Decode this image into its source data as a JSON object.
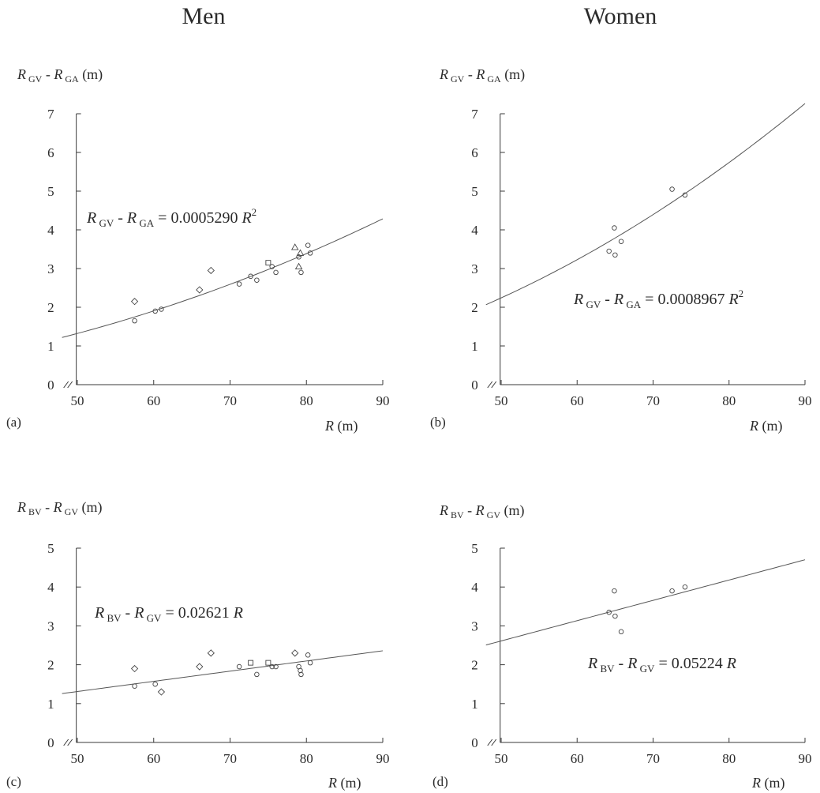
{
  "column_titles": {
    "men": "Men",
    "women": "Women"
  },
  "chart_data": [
    {
      "type": "scatter",
      "panel_label": "(a)",
      "column": "Men",
      "ylabel_parts": {
        "sym": "R",
        "sub1": "GV",
        "mid": " - ",
        "sub2": "GA",
        "unit": " (m)"
      },
      "xlabel_parts": {
        "sym": "R",
        "unit": " (m)"
      },
      "xlim": [
        48,
        90
      ],
      "ylim": [
        0,
        7
      ],
      "xticks": [
        50,
        60,
        70,
        80,
        90
      ],
      "yticks": [
        0,
        1,
        2,
        3,
        4,
        5,
        6,
        7
      ],
      "equation": {
        "lhs": "R",
        "sub1": "GV",
        "mid": " - ",
        "sub2": "GA",
        "rhs": " = 0.0005290  ",
        "var": "R",
        "exp": "2"
      },
      "fit": {
        "form": "a*R^2",
        "coef": 0.000529,
        "range": [
          48,
          90
        ]
      },
      "points": [
        {
          "x": 57.5,
          "y": 2.15,
          "m": "diamond"
        },
        {
          "x": 57.5,
          "y": 1.65,
          "m": "circle"
        },
        {
          "x": 60.2,
          "y": 1.9,
          "m": "circle"
        },
        {
          "x": 61.0,
          "y": 1.95,
          "m": "circle"
        },
        {
          "x": 66.0,
          "y": 2.45,
          "m": "diamond"
        },
        {
          "x": 67.5,
          "y": 2.95,
          "m": "diamond"
        },
        {
          "x": 71.2,
          "y": 2.6,
          "m": "circle"
        },
        {
          "x": 72.7,
          "y": 2.8,
          "m": "circle"
        },
        {
          "x": 73.5,
          "y": 2.7,
          "m": "circle"
        },
        {
          "x": 75.0,
          "y": 3.15,
          "m": "square"
        },
        {
          "x": 75.5,
          "y": 3.05,
          "m": "circle"
        },
        {
          "x": 76.0,
          "y": 2.9,
          "m": "circle"
        },
        {
          "x": 78.5,
          "y": 3.55,
          "m": "triangle"
        },
        {
          "x": 79.0,
          "y": 3.3,
          "m": "circle"
        },
        {
          "x": 79.0,
          "y": 3.05,
          "m": "triangle"
        },
        {
          "x": 79.2,
          "y": 3.4,
          "m": "triangle"
        },
        {
          "x": 79.3,
          "y": 2.9,
          "m": "circle"
        },
        {
          "x": 80.2,
          "y": 3.6,
          "m": "circle"
        },
        {
          "x": 80.5,
          "y": 3.4,
          "m": "circle"
        }
      ]
    },
    {
      "type": "scatter",
      "panel_label": "(b)",
      "column": "Women",
      "ylabel_parts": {
        "sym": "R",
        "sub1": "GV",
        "mid": " - ",
        "sub2": "GA",
        "unit": " (m)"
      },
      "xlabel_parts": {
        "sym": "R",
        "unit": " (m)"
      },
      "xlim": [
        48,
        90
      ],
      "ylim": [
        0,
        7
      ],
      "xticks": [
        50,
        60,
        70,
        80,
        90
      ],
      "yticks": [
        0,
        1,
        2,
        3,
        4,
        5,
        6,
        7
      ],
      "equation": {
        "lhs": "R",
        "sub1": "GV",
        "mid": " - ",
        "sub2": "GA",
        "rhs": " = 0.0008967  ",
        "var": "R",
        "exp": "2"
      },
      "fit": {
        "form": "a*R^2",
        "coef": 0.0008967,
        "range": [
          48,
          90
        ]
      },
      "points": [
        {
          "x": 64.2,
          "y": 3.45,
          "m": "circle"
        },
        {
          "x": 64.9,
          "y": 4.05,
          "m": "circle"
        },
        {
          "x": 65.0,
          "y": 3.35,
          "m": "circle"
        },
        {
          "x": 65.8,
          "y": 3.7,
          "m": "circle"
        },
        {
          "x": 72.5,
          "y": 5.05,
          "m": "circle"
        },
        {
          "x": 74.2,
          "y": 4.9,
          "m": "circle"
        }
      ]
    },
    {
      "type": "scatter",
      "panel_label": "(c)",
      "column": "Men",
      "ylabel_parts": {
        "sym": "R",
        "sub1": "BV",
        "mid": " - ",
        "sub2": "GV",
        "unit": " (m)"
      },
      "xlabel_parts": {
        "sym": "R",
        "unit": " (m)"
      },
      "xlim": [
        48,
        90
      ],
      "ylim": [
        0,
        5
      ],
      "xticks": [
        50,
        60,
        70,
        80,
        90
      ],
      "yticks": [
        0,
        1,
        2,
        3,
        4,
        5
      ],
      "equation": {
        "lhs": "R",
        "sub1": "BV",
        "mid": " - ",
        "sub2": "GV",
        "rhs": " = 0.02621  ",
        "var": "R",
        "exp": ""
      },
      "fit": {
        "form": "a*R",
        "coef": 0.02621,
        "range": [
          48,
          90
        ]
      },
      "points": [
        {
          "x": 57.5,
          "y": 1.9,
          "m": "diamond"
        },
        {
          "x": 57.5,
          "y": 1.45,
          "m": "circle"
        },
        {
          "x": 60.2,
          "y": 1.5,
          "m": "circle"
        },
        {
          "x": 61.0,
          "y": 1.3,
          "m": "diamond"
        },
        {
          "x": 66.0,
          "y": 1.95,
          "m": "diamond"
        },
        {
          "x": 67.5,
          "y": 2.3,
          "m": "diamond"
        },
        {
          "x": 71.2,
          "y": 1.95,
          "m": "circle"
        },
        {
          "x": 72.7,
          "y": 2.05,
          "m": "square"
        },
        {
          "x": 73.5,
          "y": 1.75,
          "m": "circle"
        },
        {
          "x": 75.0,
          "y": 2.05,
          "m": "square"
        },
        {
          "x": 75.5,
          "y": 1.95,
          "m": "circle"
        },
        {
          "x": 76.0,
          "y": 1.95,
          "m": "circle"
        },
        {
          "x": 78.5,
          "y": 2.3,
          "m": "diamond"
        },
        {
          "x": 79.0,
          "y": 1.95,
          "m": "circle"
        },
        {
          "x": 79.2,
          "y": 1.85,
          "m": "circle"
        },
        {
          "x": 79.3,
          "y": 1.75,
          "m": "circle"
        },
        {
          "x": 80.2,
          "y": 2.25,
          "m": "circle"
        },
        {
          "x": 80.5,
          "y": 2.05,
          "m": "circle"
        }
      ]
    },
    {
      "type": "scatter",
      "panel_label": "(d)",
      "column": "Women",
      "ylabel_parts": {
        "sym": "R",
        "sub1": "BV",
        "mid": " - ",
        "sub2": "GV",
        "unit": " (m)"
      },
      "xlabel_parts": {
        "sym": "R",
        "unit": " (m)"
      },
      "xlim": [
        48,
        90
      ],
      "ylim": [
        0,
        5
      ],
      "xticks": [
        50,
        60,
        70,
        80,
        90
      ],
      "yticks": [
        0,
        1,
        2,
        3,
        4,
        5
      ],
      "equation": {
        "lhs": "R",
        "sub1": "BV",
        "mid": " - ",
        "sub2": "GV",
        "rhs": " = 0.05224  ",
        "var": "R",
        "exp": ""
      },
      "fit": {
        "form": "a*R",
        "coef": 0.05224,
        "range": [
          48,
          90
        ]
      },
      "points": [
        {
          "x": 64.2,
          "y": 3.35,
          "m": "circle"
        },
        {
          "x": 64.9,
          "y": 3.9,
          "m": "circle"
        },
        {
          "x": 65.0,
          "y": 3.25,
          "m": "circle"
        },
        {
          "x": 65.8,
          "y": 2.85,
          "m": "circle"
        },
        {
          "x": 72.5,
          "y": 3.9,
          "m": "circle"
        },
        {
          "x": 74.2,
          "y": 4.0,
          "m": "circle"
        }
      ]
    }
  ]
}
